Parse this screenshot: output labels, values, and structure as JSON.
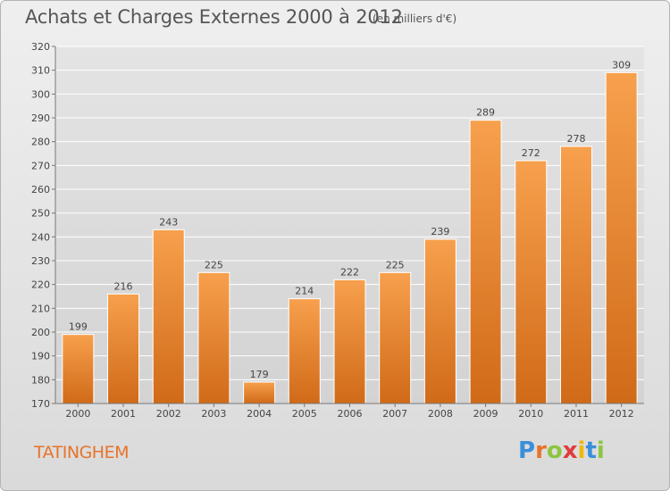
{
  "header": {
    "title": "Achats et Charges Externes 2000 à 2012",
    "subtitle": "(en milliers d'€)"
  },
  "footer": {
    "commune": "TATINGHEM",
    "logo_letters": [
      "P",
      "r",
      "o",
      "x",
      "i",
      "t",
      "i"
    ],
    "logo_colors": [
      "#3a8fd9",
      "#e8732a",
      "#8cc63f",
      "#e23b3b",
      "#f2b705",
      "#3a8fd9",
      "#8cc63f"
    ]
  },
  "colors": {
    "bar_top": "#f7a04d",
    "bar_bottom": "#d06a18",
    "grid": "#ffffff",
    "axis_text": "#444444"
  },
  "chart_data": {
    "type": "bar",
    "categories": [
      "2000",
      "2001",
      "2002",
      "2003",
      "2004",
      "2005",
      "2006",
      "2007",
      "2008",
      "2009",
      "2010",
      "2011",
      "2012"
    ],
    "values": [
      199,
      216,
      243,
      225,
      179,
      214,
      222,
      225,
      239,
      289,
      272,
      278,
      309
    ],
    "yticks": [
      170,
      180,
      190,
      200,
      210,
      220,
      230,
      240,
      250,
      260,
      270,
      280,
      290,
      300,
      310,
      320
    ],
    "ylim": [
      170,
      320
    ],
    "grid": true,
    "title": "Achats et Charges Externes 2000 à 2012",
    "xlabel": "",
    "ylabel": ""
  }
}
